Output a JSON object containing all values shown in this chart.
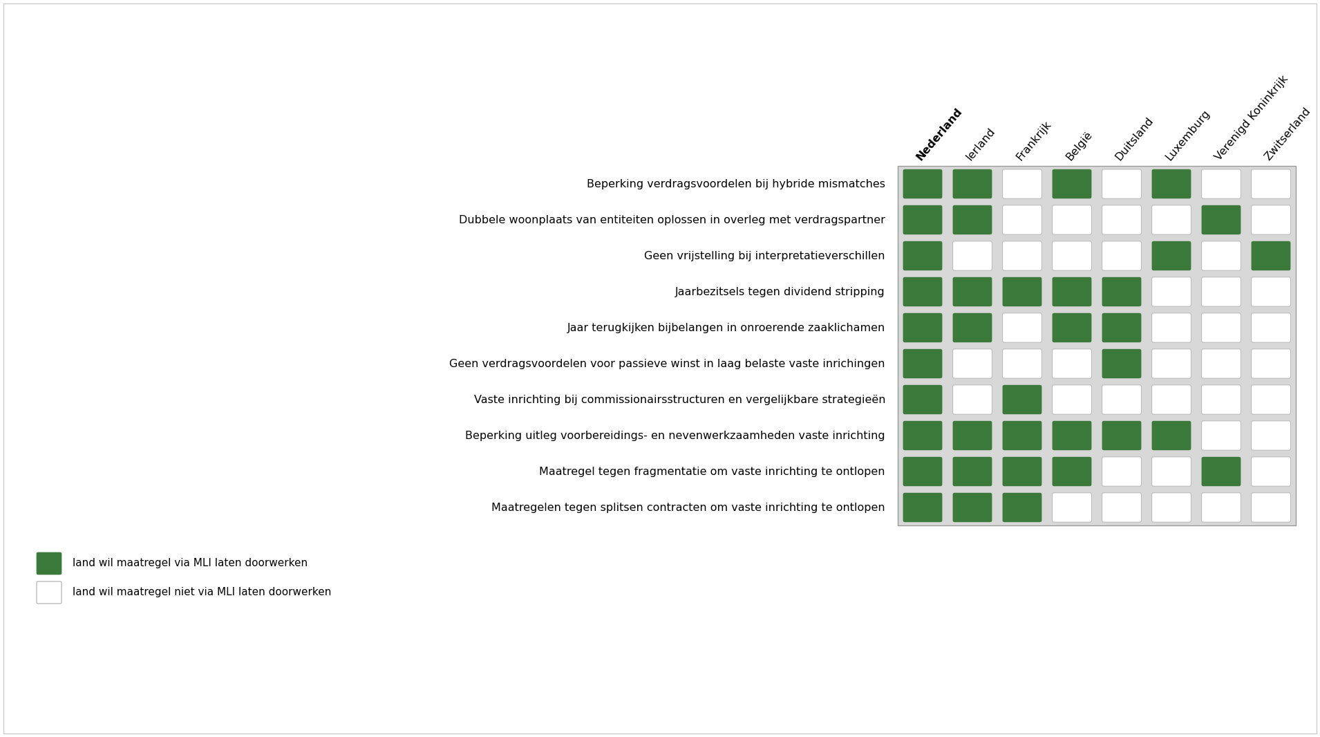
{
  "columns": [
    "Nederland",
    "Ierland",
    "Frankrijk",
    "België",
    "Duitsland",
    "Luxemburg",
    "Verenigd Koninkrijk",
    "Zwitserland"
  ],
  "rows": [
    "Beperking verdragsvoordelen bij hybride mismatches",
    "Dubbele woonplaats van entiteiten oplossen in overleg met verdragspartner",
    "Geen vrijstelling bij interpretatieverschillen",
    "Jaarbezitsels tegen dividend stripping",
    "Jaar terugkijken bijbelangen in onroerende zaaklichamen",
    "Geen verdragsvoordelen voor passieve winst in laag belaste vaste inrichingen",
    "Vaste inrichting bij commissionairsstructuren en vergelijkbare strategieën",
    "Beperking uitleg voorbereidings- en nevenwerkzaamheden vaste inrichting",
    "Maatregel tegen fragmentatie om vaste inrichting te ontlopen",
    "Maatregelen tegen splitsen contracten om vaste inrichting te ontlopen"
  ],
  "data": [
    [
      1,
      1,
      0,
      1,
      0,
      1,
      0,
      0
    ],
    [
      1,
      1,
      0,
      0,
      0,
      0,
      1,
      0
    ],
    [
      1,
      0,
      0,
      0,
      0,
      1,
      0,
      1
    ],
    [
      1,
      1,
      1,
      1,
      1,
      0,
      0,
      0
    ],
    [
      1,
      1,
      0,
      1,
      1,
      0,
      0,
      0
    ],
    [
      1,
      0,
      0,
      0,
      1,
      0,
      0,
      0
    ],
    [
      1,
      0,
      1,
      0,
      0,
      0,
      0,
      0
    ],
    [
      1,
      1,
      1,
      1,
      1,
      1,
      0,
      0
    ],
    [
      1,
      1,
      1,
      1,
      0,
      0,
      1,
      0
    ],
    [
      1,
      1,
      1,
      0,
      0,
      0,
      0,
      0
    ]
  ],
  "green_color": "#3b7a3b",
  "white_color": "#ffffff",
  "bg_col_color": "#d8d8d8",
  "col_header_rotation": 50,
  "legend_green_label": "land wil maatregel via MLI laten doorwerken",
  "legend_white_label": "land wil maatregel niet via MLI laten doorwerken",
  "row_label_fontsize": 11.5,
  "col_label_fontsize": 11.5,
  "outer_border_color": "#999999",
  "figure_border_color": "#cccccc"
}
